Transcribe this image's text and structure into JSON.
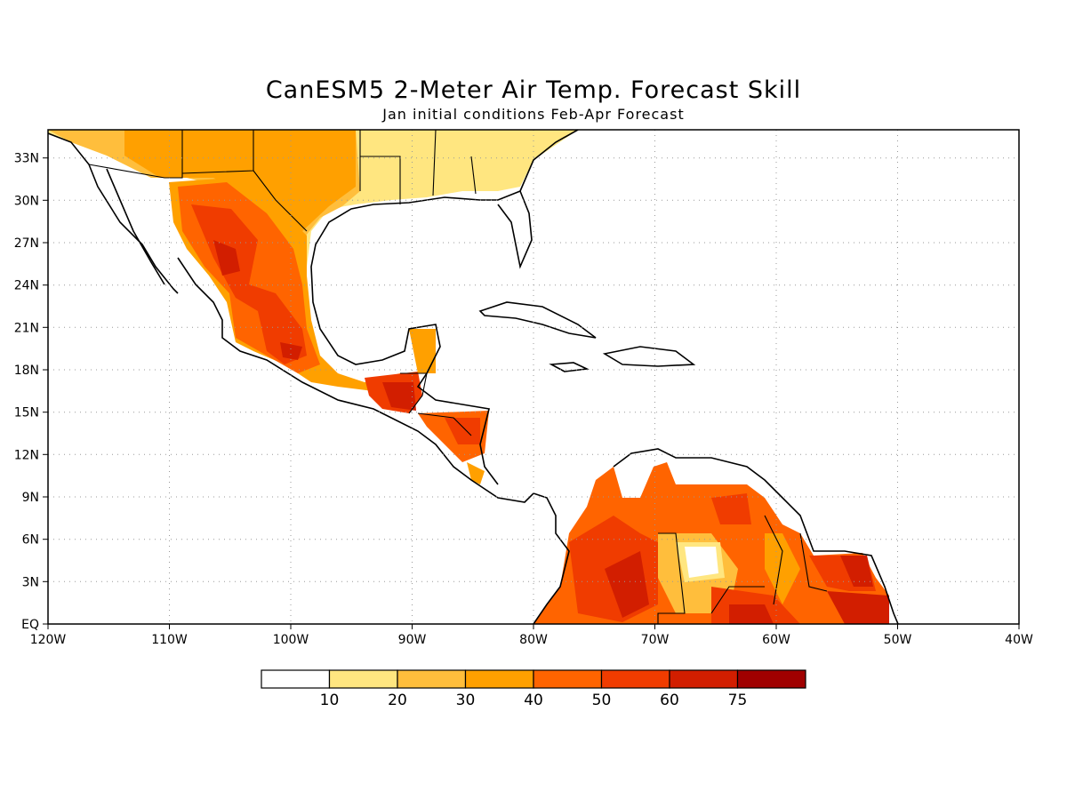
{
  "title": "CanESM5 2-Meter Air Temp. Forecast Skill",
  "subtitle": "Jan initial conditions  Feb-Apr Forecast",
  "axes": {
    "lon_labels": [
      "120W",
      "110W",
      "100W",
      "90W",
      "80W",
      "70W",
      "60W",
      "50W",
      "40W"
    ],
    "lat_labels": [
      "EQ",
      "3N",
      "6N",
      "9N",
      "12N",
      "15N",
      "18N",
      "21N",
      "24N",
      "27N",
      "30N",
      "33N"
    ],
    "lon_range": [
      -120,
      -40
    ],
    "lat_range": [
      0,
      35
    ],
    "grid": "dotted"
  },
  "colorbar": {
    "labels": [
      "10",
      "20",
      "30",
      "40",
      "50",
      "60",
      "75"
    ],
    "colors": [
      "#ffffff",
      "#ffe680",
      "#ffbe3c",
      "#ffa000",
      "#ff6400",
      "#f03c00",
      "#d21e00",
      "#a00000"
    ]
  }
}
